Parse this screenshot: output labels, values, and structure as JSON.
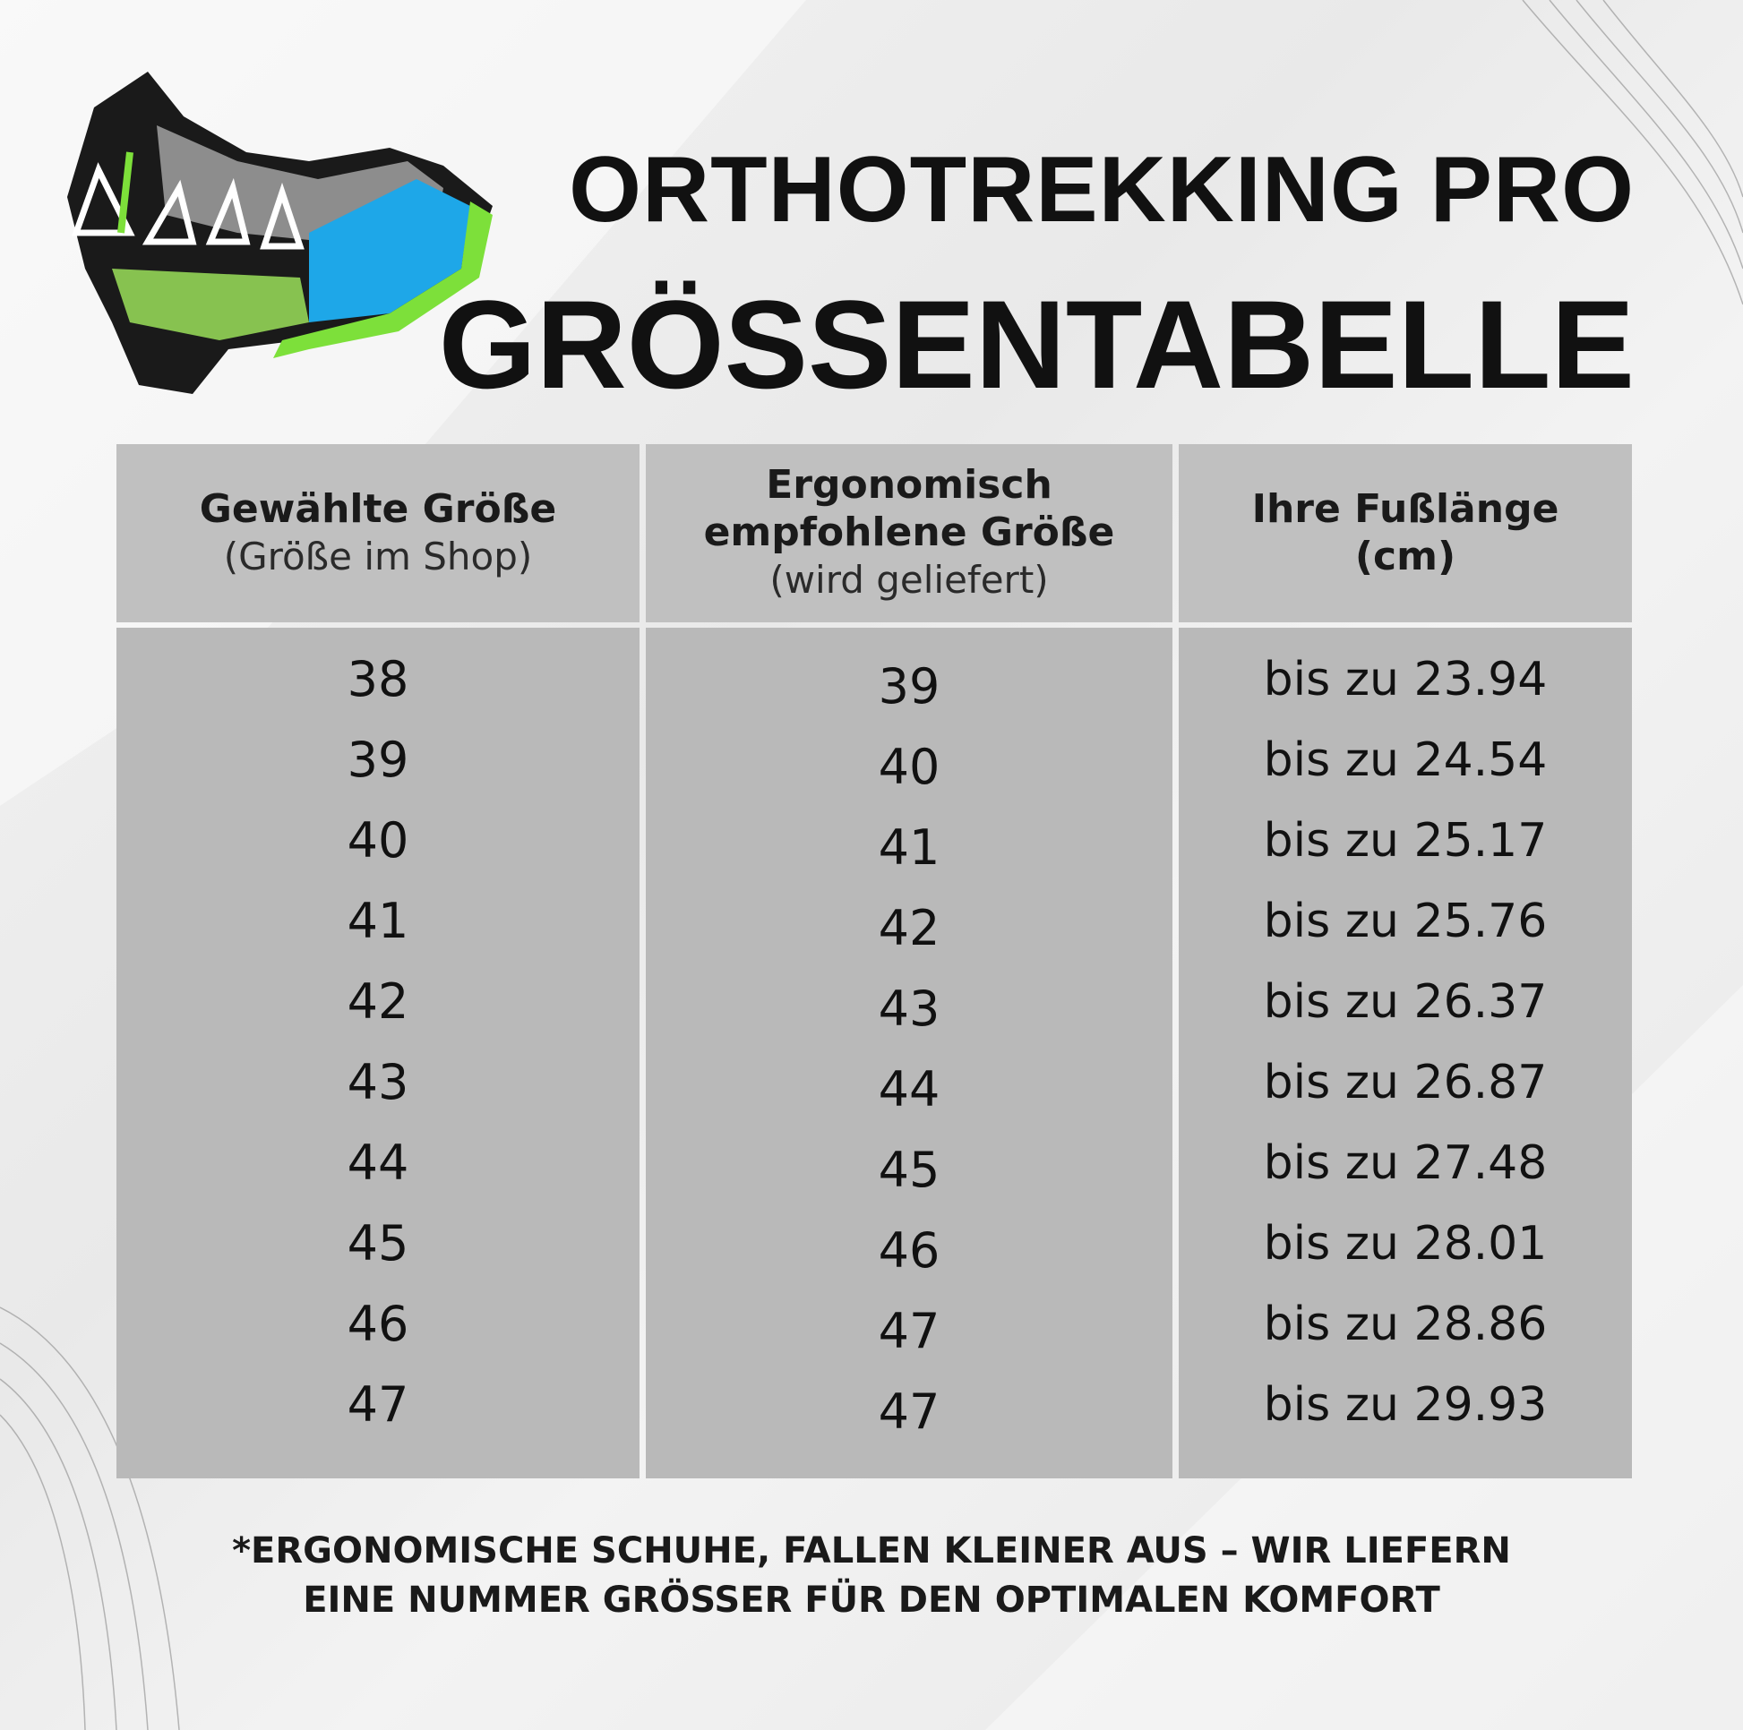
{
  "header": {
    "title_line1": "ORTHOTREKKING PRO",
    "title_line2": "GRÖSSENTABELLE"
  },
  "product_image": {
    "icon": "hiking-boot-image",
    "colors": [
      "#1a1a1a",
      "#8a8a8a",
      "#1ea7e8",
      "#7de03a"
    ]
  },
  "table": {
    "columns": [
      {
        "title": "Gewählte Größe",
        "subtitle": "(Größe im Shop)"
      },
      {
        "title": "Ergonomisch empfohlene Größe",
        "subtitle": "(wird geliefert)"
      },
      {
        "title": "Ihre Fußlänge (cm)",
        "subtitle": ""
      }
    ],
    "rows": [
      [
        "38",
        "39",
        "bis zu 23.94"
      ],
      [
        "39",
        "40",
        "bis zu 24.54"
      ],
      [
        "40",
        "41",
        "bis zu 25.17"
      ],
      [
        "41",
        "42",
        "bis zu 25.76"
      ],
      [
        "42",
        "43",
        "bis zu 26.37"
      ],
      [
        "43",
        "44",
        "bis zu 26.87"
      ],
      [
        "44",
        "45",
        "bis zu 27.48"
      ],
      [
        "45",
        "46",
        "bis zu 28.01"
      ],
      [
        "46",
        "47",
        "bis zu 28.86"
      ],
      [
        "47",
        "47",
        "bis zu 29.93"
      ]
    ]
  },
  "footer": {
    "line1": "*ERGONOMISCHE SCHUHE, FALLEN KLEINER AUS – WIR LIEFERN",
    "line2": "EINE NUMMER GRÖSSER FÜR DEN OPTIMALEN KOMFORT"
  }
}
